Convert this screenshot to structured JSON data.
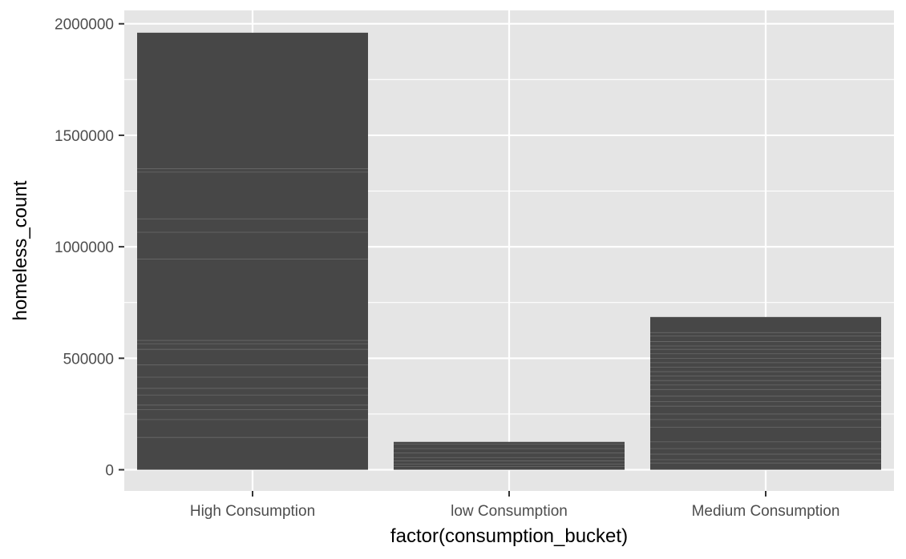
{
  "chart_data": {
    "type": "bar",
    "title": "",
    "xlabel": "factor(consumption_bucket)",
    "ylabel": "homeless_count",
    "categories": [
      "High Consumption",
      "low Consumption",
      "Medium Consumption"
    ],
    "values": [
      1960000,
      125000,
      685000
    ],
    "ylim": [
      -95000,
      2060000
    ],
    "yticks": [
      0,
      500000,
      1000000,
      1500000,
      2000000
    ],
    "ytick_labels": [
      "0",
      "500000",
      "1000000",
      "1500000",
      "2000000"
    ],
    "grid": true,
    "legend": "none",
    "colors": {
      "panel": "#e5e5e5",
      "grid": "#ffffff",
      "bar": "#474747",
      "bar_stripe": "#6a6a6a"
    },
    "stripes": [
      [
        1350000,
        1335000,
        1125000,
        1065000,
        945000,
        580000,
        565000,
        540000,
        470000,
        415000,
        365000,
        335000,
        290000,
        270000,
        225000,
        145000
      ],
      [
        115000,
        95000,
        75000,
        55000,
        40000,
        25000,
        15000
      ],
      [
        615000,
        600000,
        575000,
        555000,
        540000,
        520000,
        500000,
        480000,
        460000,
        440000,
        420000,
        400000,
        380000,
        360000,
        330000,
        305000,
        285000,
        250000,
        225000,
        190000,
        125000,
        95000,
        70000,
        45000,
        30000
      ]
    ]
  }
}
